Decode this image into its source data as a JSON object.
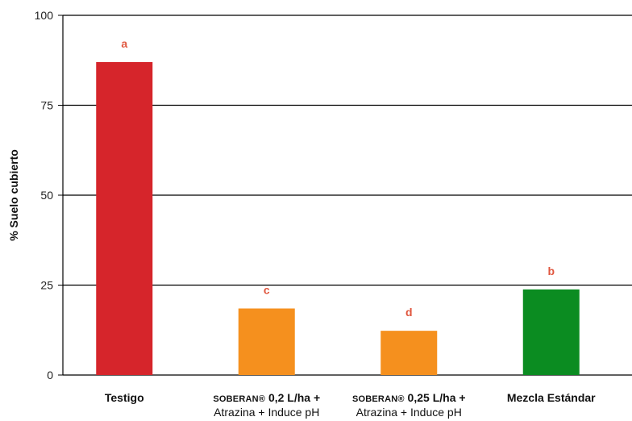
{
  "chart_data": {
    "type": "bar",
    "ylabel": "% Suelo cubierto",
    "ylim": [
      0,
      100
    ],
    "yticks": [
      0,
      25,
      50,
      75,
      100
    ],
    "grid": true,
    "categories": [
      {
        "line1_prefix": "",
        "line1": "Testigo",
        "line2": ""
      },
      {
        "line1_prefix": "SOBERAN®",
        "line1": " 0,2 L/ha +",
        "line2": "Atrazina + Induce pH"
      },
      {
        "line1_prefix": "SOBERAN®",
        "line1": " 0,25 L/ha +",
        "line2": "Atrazina + Induce pH"
      },
      {
        "line1_prefix": "",
        "line1": "Mezcla Estándar",
        "line2": ""
      }
    ],
    "values": [
      87,
      18.5,
      12.3,
      23.8
    ],
    "significance": [
      "a",
      "c",
      "d",
      "b"
    ],
    "bar_colors": [
      "#d6252b",
      "#f5901e",
      "#f5901e",
      "#0b8c21"
    ],
    "significance_color": "#e0573f"
  }
}
